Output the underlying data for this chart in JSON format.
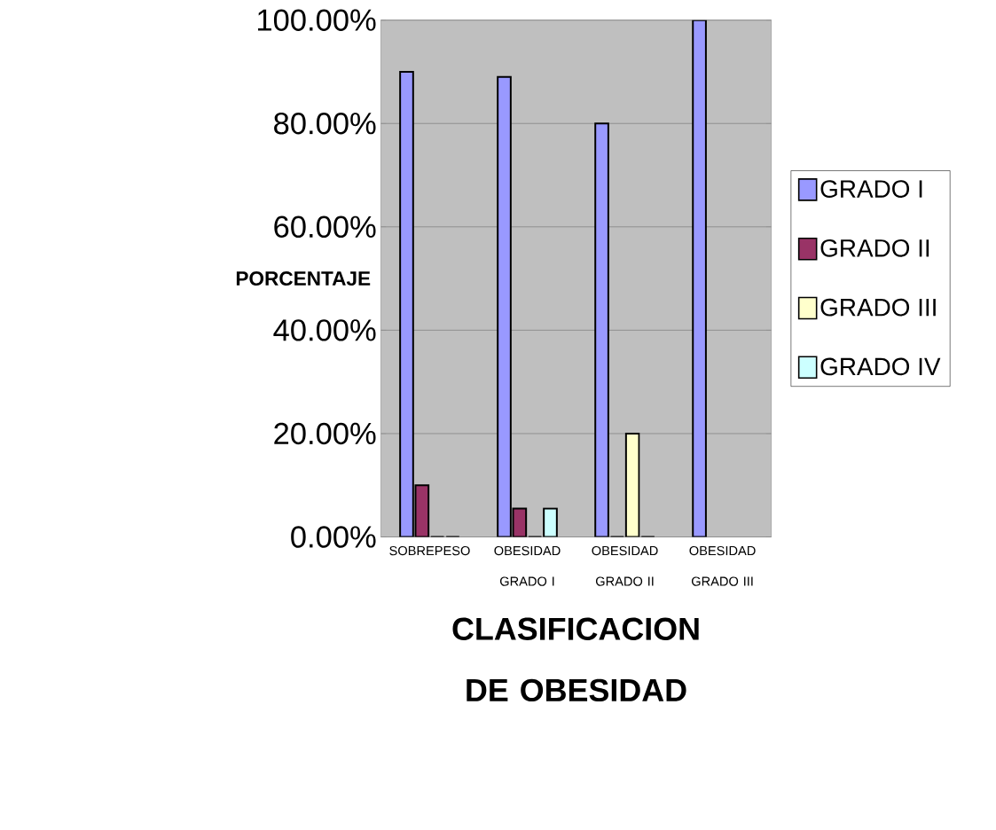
{
  "chart_data": {
    "type": "bar",
    "xlabel": "CLASIFICACION DE OBESIDAD",
    "ylabel": "PORCENTAJE",
    "categories": [
      "SOBREPESO",
      "OBESIDAD GRADO I",
      "OBESIDAD GRADO II",
      "OBESIDAD GRADO III"
    ],
    "series": [
      {
        "name": "GRADO I",
        "color": "#9999ff",
        "values": [
          90,
          89,
          80,
          100
        ]
      },
      {
        "name": "GRADO II",
        "color": "#993366",
        "values": [
          10,
          5.5,
          0,
          null
        ]
      },
      {
        "name": "GRADO III",
        "color": "#ffffcc",
        "values": [
          0,
          0,
          20,
          null
        ]
      },
      {
        "name": "GRADO IV",
        "color": "#ccffff",
        "values": [
          0,
          5.5,
          0,
          null
        ]
      }
    ],
    "ylim": [
      0,
      100
    ],
    "yticks": [
      {
        "value": 0,
        "label": "0.00%"
      },
      {
        "value": 20,
        "label": "20.00%"
      },
      {
        "value": 40,
        "label": "40.00%"
      },
      {
        "value": 60,
        "label": "60.00%"
      },
      {
        "value": 80,
        "label": "80.00%"
      },
      {
        "value": 100,
        "label": "100.00%"
      }
    ],
    "grid": "y",
    "legend": "right"
  }
}
